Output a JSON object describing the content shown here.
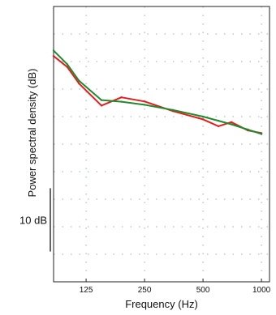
{
  "chart_data": {
    "type": "line",
    "xlabel": "Frequency (Hz)",
    "ylabel": "Power spectral density (dB)",
    "x_scale": "log",
    "xlim": [
      85,
      1100
    ],
    "ylim": [
      0,
      100
    ],
    "x_ticks": [
      {
        "value": 125,
        "label": "125"
      },
      {
        "value": 250,
        "label": "250"
      },
      {
        "value": 500,
        "label": "500"
      },
      {
        "value": 1000,
        "label": "1000"
      }
    ],
    "grid": true,
    "scale_bar": {
      "label": "10 dB",
      "from": 11,
      "to": 34
    },
    "series": [
      {
        "color": "#e41c1c",
        "x": [
          85,
          100,
          115,
          150,
          190,
          250,
          350,
          500,
          600,
          700,
          850,
          1000
        ],
        "y": [
          82,
          78,
          72,
          64,
          67,
          65.5,
          62,
          59,
          56.5,
          58,
          55,
          54
        ]
      },
      {
        "color": "#1f8a2e",
        "x": [
          85,
          100,
          115,
          150,
          190,
          250,
          350,
          500,
          600,
          700,
          850,
          1000
        ],
        "y": [
          84,
          79,
          73,
          66,
          65.4,
          64.3,
          62.4,
          60,
          58.5,
          57.2,
          55.3,
          53.7
        ]
      }
    ]
  }
}
